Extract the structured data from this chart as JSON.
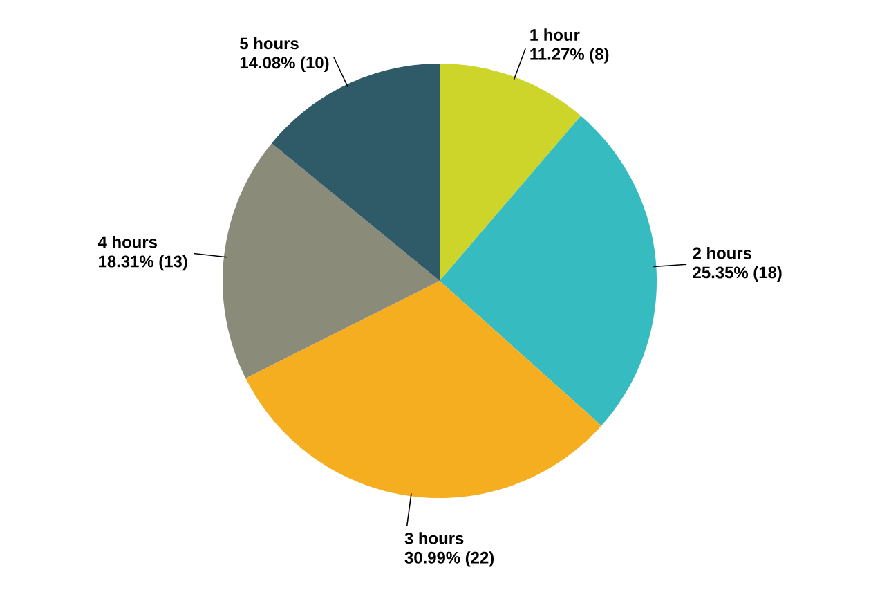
{
  "chart_data": {
    "type": "pie",
    "categories": [
      "1 hour",
      "2 hours",
      "3 hours",
      "4 hours",
      "5 hours"
    ],
    "values": [
      8,
      18,
      22,
      13,
      10
    ],
    "value_labels": [
      "11.27% (8)",
      "25.35% (18)",
      "30.99% (22)",
      "18.31% (13)",
      "14.08% (10)"
    ],
    "colors": [
      "#cdd42a",
      "#36bcc0",
      "#f5ae20",
      "#8b8b7a",
      "#2f5b68"
    ]
  }
}
